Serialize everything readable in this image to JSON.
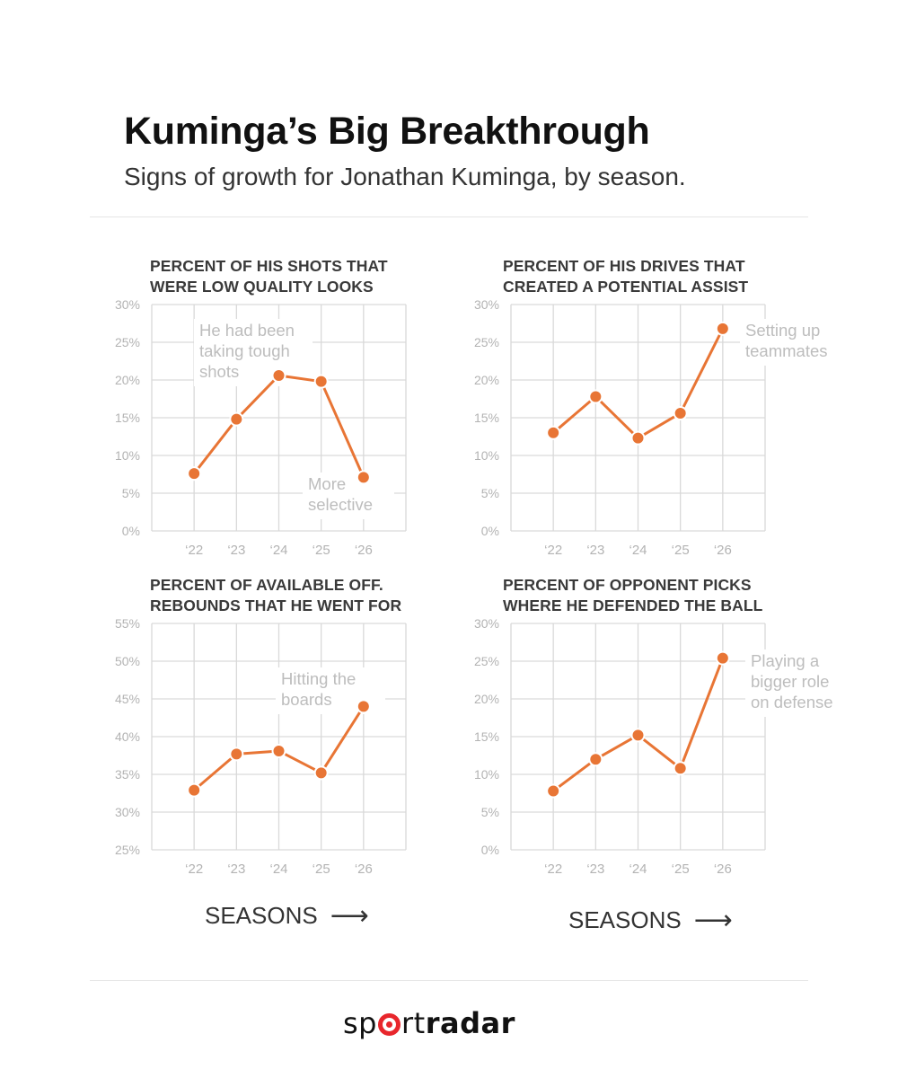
{
  "header": {
    "title": "Kuminga’s Big Breakthrough",
    "subtitle": "Signs of growth for Jonathan Kuminga, by season."
  },
  "footer": {
    "seasons_label": "SEASONS",
    "logo_text_a": "sp",
    "logo_text_b": "rt",
    "logo_text_c": "radar"
  },
  "colors": {
    "line": "#e87535",
    "grid": "#d9d9d9",
    "axis_text": "#b3b3b3",
    "annotation": "#bdbdbd"
  },
  "chart_data": [
    {
      "type": "line",
      "title_line1": "PERCENT OF HIS SHOTS THAT",
      "title_line2": "WERE LOW QUALITY LOOKS",
      "categories": [
        "‘22",
        "‘23",
        "‘24",
        "‘25",
        "‘26"
      ],
      "values": [
        7.6,
        14.8,
        20.6,
        19.8,
        7.1
      ],
      "ylim": [
        0,
        30
      ],
      "yticks": [
        "0%",
        "5%",
        "10%",
        "15%",
        "20%",
        "25%",
        "30%"
      ],
      "annotations": [
        {
          "lines": [
            "He had been",
            "taking tough",
            "shots"
          ],
          "anchor": "upper-left"
        },
        {
          "lines": [
            "More",
            "selective"
          ],
          "anchor": "lower-right"
        }
      ]
    },
    {
      "type": "line",
      "title_line1": "PERCENT OF HIS DRIVES THAT",
      "title_line2": "CREATED A POTENTIAL ASSIST",
      "categories": [
        "‘22",
        "‘23",
        "‘24",
        "‘25",
        "‘26"
      ],
      "values": [
        13.0,
        17.8,
        12.3,
        15.6,
        26.8
      ],
      "ylim": [
        0,
        30
      ],
      "yticks": [
        "0%",
        "5%",
        "10%",
        "15%",
        "20%",
        "25%",
        "30%"
      ],
      "annotations": [
        {
          "lines": [
            "Setting up",
            "teammates"
          ],
          "anchor": "right"
        }
      ]
    },
    {
      "type": "line",
      "title_line1": "PERCENT OF AVAILABLE OFF.",
      "title_line2": "REBOUNDS THAT HE WENT FOR",
      "categories": [
        "‘22",
        "‘23",
        "‘24",
        "‘25",
        "‘26"
      ],
      "values": [
        32.9,
        37.7,
        38.1,
        35.2,
        44.0
      ],
      "ylim": [
        25,
        55
      ],
      "yticks": [
        "25%",
        "30%",
        "35%",
        "40%",
        "45%",
        "50%",
        "55%"
      ],
      "annotations": [
        {
          "lines": [
            "Hitting the",
            "boards"
          ],
          "anchor": "upper-right"
        }
      ]
    },
    {
      "type": "line",
      "title_line1": "PERCENT OF OPPONENT PICKS",
      "title_line2": "WHERE HE DEFENDED THE BALL",
      "categories": [
        "‘22",
        "‘23",
        "‘24",
        "‘25",
        "‘26"
      ],
      "values": [
        7.8,
        12.0,
        15.2,
        10.8,
        25.4
      ],
      "ylim": [
        0,
        30
      ],
      "yticks": [
        "0%",
        "5%",
        "10%",
        "15%",
        "20%",
        "25%",
        "30%"
      ],
      "annotations": [
        {
          "lines": [
            "Playing a",
            "bigger role",
            "on defense"
          ],
          "anchor": "right"
        }
      ]
    }
  ]
}
